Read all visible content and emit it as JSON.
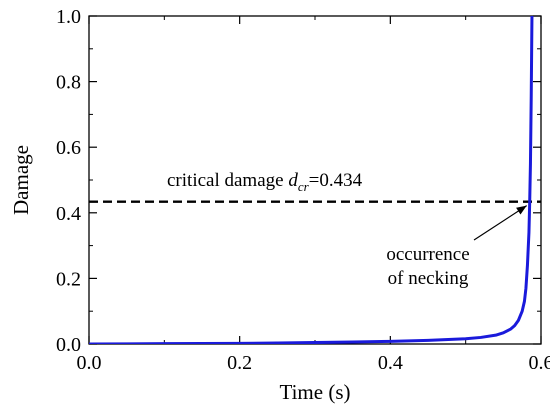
{
  "chart_data": {
    "type": "line",
    "title": "",
    "xlabel": "Time (s)",
    "ylabel": "Damage",
    "xlim": [
      0.0,
      0.6
    ],
    "ylim": [
      0.0,
      1.0
    ],
    "x_ticks": [
      0.0,
      0.2,
      0.4,
      0.6
    ],
    "x_tick_labels": [
      "0.0",
      "0.2",
      "0.4",
      "0.6"
    ],
    "y_ticks": [
      0.0,
      0.2,
      0.4,
      0.6,
      0.8,
      1.0
    ],
    "y_tick_labels": [
      "0.0",
      "0.2",
      "0.4",
      "0.6",
      "0.8",
      "1.0"
    ],
    "grid": false,
    "legend": "none",
    "series": [
      {
        "color": "#1a1adb",
        "x": [
          0.0,
          0.05,
          0.1,
          0.15,
          0.2,
          0.25,
          0.3,
          0.35,
          0.4,
          0.45,
          0.5,
          0.52,
          0.54,
          0.55,
          0.56,
          0.565,
          0.57,
          0.575,
          0.578,
          0.58,
          0.582,
          0.584,
          0.585,
          0.586,
          0.587,
          0.588
        ],
        "y": [
          0.0,
          0.0005,
          0.001,
          0.0015,
          0.002,
          0.003,
          0.0045,
          0.006,
          0.008,
          0.011,
          0.016,
          0.02,
          0.027,
          0.034,
          0.046,
          0.056,
          0.072,
          0.1,
          0.13,
          0.17,
          0.24,
          0.34,
          0.434,
          0.55,
          0.75,
          1.0
        ]
      }
    ],
    "reference_line": {
      "y": 0.434,
      "style": "dashed",
      "color": "#000000",
      "label_prefix": "critical damage ",
      "label_var": "d",
      "label_sub": "cr",
      "label_suffix": "=0.434"
    },
    "annotation": {
      "line1": "occurrence",
      "line2": "of necking",
      "point": [
        0.585,
        0.434
      ]
    }
  }
}
